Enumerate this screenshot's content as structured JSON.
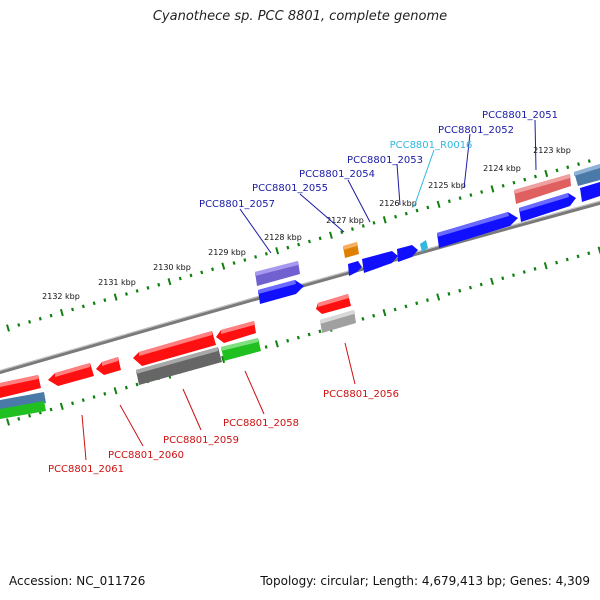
{
  "title": "Cyanothece sp. PCC 8801, complete genome",
  "footer": {
    "accession": "Accession: NC_011726",
    "summary": "Topology: circular; Length: 4,679,413 bp; Genes: 4,309"
  },
  "colors": {
    "forward_gene": "#1010ff",
    "reverse_gene": "#ff1010",
    "gray_gene": "#707070",
    "green_gene": "#20c020",
    "purple_gene": "#7060d0",
    "orange_gene": "#e08000",
    "pink_gene": "#e06060",
    "steel_gene": "#4070a0",
    "tick": "#108010",
    "backbone": "#808080",
    "forward_label": "#1a1aa6",
    "reverse_label": "#cc1111",
    "rna_label": "#30b8e0"
  },
  "kbp_labels": [
    "2123 kbp",
    "2124 kbp",
    "2125 kbp",
    "2126 kbp",
    "2127 kbp",
    "2128 kbp",
    "2129 kbp",
    "2130 kbp",
    "2131 kbp",
    "2132 kbp"
  ],
  "gene_labels": {
    "forward": [
      "PCC8801_2051",
      "PCC8801_2052",
      "PCC8801_2053",
      "PCC8801_2054",
      "PCC8801_2055",
      "PCC8801_2057"
    ],
    "rna": "PCC8801_R0016",
    "reverse": [
      "PCC8801_2056",
      "PCC8801_2058",
      "PCC8801_2059",
      "PCC8801_2060",
      "PCC8801_2061"
    ]
  }
}
